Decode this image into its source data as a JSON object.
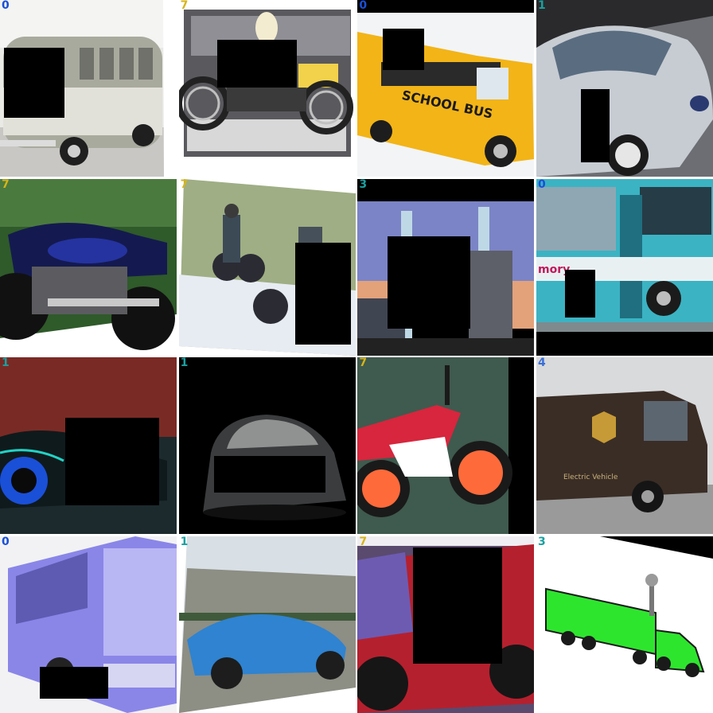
{
  "grid": {
    "tiles": [
      {
        "label": "0",
        "label_color": "#1a4fd8",
        "subject": "vw-bus-icon",
        "text": ""
      },
      {
        "label": "7",
        "label_color": "#d6b51a",
        "subject": "motorcycle-icon",
        "text": ""
      },
      {
        "label": "0",
        "label_color": "#1a4fd8",
        "subject": "school-bus-icon",
        "text": "SCHOOL BUS"
      },
      {
        "label": "1",
        "label_color": "#1aa0a0",
        "subject": "concept-car-icon",
        "text": ""
      },
      {
        "label": "7",
        "label_color": "#d6b51a",
        "subject": "motorcycle-icon",
        "text": ""
      },
      {
        "label": "7",
        "label_color": "#d6b51a",
        "subject": "dirt-bike-icon",
        "text": ""
      },
      {
        "label": "3",
        "label_color": "#1aa0a0",
        "subject": "semi-truck-icon",
        "text": ""
      },
      {
        "label": "0",
        "label_color": "#1a4fd8",
        "subject": "city-bus-icon",
        "text": "mory"
      },
      {
        "label": "1",
        "label_color": "#1aa0a0",
        "subject": "sports-car-icon",
        "text": ""
      },
      {
        "label": "1",
        "label_color": "#1aa0a0",
        "subject": "car-rear-icon",
        "text": ""
      },
      {
        "label": "7",
        "label_color": "#d6b51a",
        "subject": "motorcycle-icon",
        "text": ""
      },
      {
        "label": "4",
        "label_color": "#3a6fd8",
        "subject": "delivery-van-icon",
        "text": "Electric Vehicle"
      },
      {
        "label": "0",
        "label_color": "#1a4fd8",
        "subject": "coach-bus-icon",
        "text": ""
      },
      {
        "label": "1",
        "label_color": "#1aa0a0",
        "subject": "corvette-icon",
        "text": ""
      },
      {
        "label": "7",
        "label_color": "#d6b51a",
        "subject": "racing-motorcycle-icon",
        "text": ""
      },
      {
        "label": "3",
        "label_color": "#1aa0a0",
        "subject": "toy-truck-icon",
        "text": ""
      }
    ]
  }
}
